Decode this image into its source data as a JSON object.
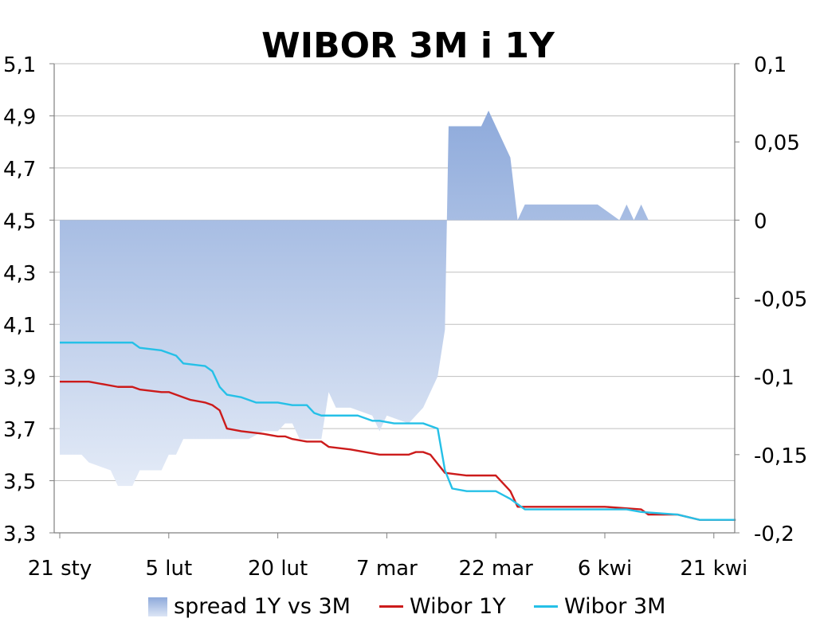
{
  "chart_data": {
    "type": "area+line",
    "title": "WIBOR 3M i 1Y",
    "x_tick_labels": [
      "21 sty",
      "5 lut",
      "20 lut",
      "7 mar",
      "22 mar",
      "6 kwi",
      "21 kwi"
    ],
    "x_tick_days": [
      0,
      15,
      30,
      45,
      60,
      75,
      90
    ],
    "y_left": {
      "min": 3.3,
      "max": 5.1,
      "ticks": [
        "3,3",
        "3,5",
        "3,7",
        "3,9",
        "4,1",
        "4,3",
        "4,5",
        "4,7",
        "4,9",
        "5,1"
      ]
    },
    "y_right": {
      "min": -0.2,
      "max": 0.1,
      "ticks": [
        "-0,2",
        "-0,15",
        "-0,1",
        "-0,05",
        "0",
        "0,05",
        "0,1"
      ]
    },
    "grid": true,
    "legend_position": "bottom",
    "series": [
      {
        "name": "spread 1Y vs 3M",
        "axis": "right",
        "kind": "area",
        "color": "#8eaadb",
        "points": [
          [
            0,
            -0.15
          ],
          [
            3,
            -0.15
          ],
          [
            4,
            -0.155
          ],
          [
            7,
            -0.16
          ],
          [
            8,
            -0.17
          ],
          [
            10,
            -0.17
          ],
          [
            11,
            -0.16
          ],
          [
            14,
            -0.16
          ],
          [
            15,
            -0.15
          ],
          [
            16,
            -0.15
          ],
          [
            17,
            -0.14
          ],
          [
            21,
            -0.14
          ],
          [
            23,
            -0.14
          ],
          [
            24,
            -0.14
          ],
          [
            25,
            -0.14
          ],
          [
            26,
            -0.14
          ],
          [
            28,
            -0.135
          ],
          [
            29,
            -0.135
          ],
          [
            30,
            -0.135
          ],
          [
            31,
            -0.13
          ],
          [
            32,
            -0.13
          ],
          [
            33,
            -0.14
          ],
          [
            36,
            -0.14
          ],
          [
            37,
            -0.11
          ],
          [
            38,
            -0.12
          ],
          [
            40,
            -0.12
          ],
          [
            43,
            -0.125
          ],
          [
            44,
            -0.135
          ],
          [
            45,
            -0.125
          ],
          [
            48,
            -0.13
          ],
          [
            50,
            -0.12
          ],
          [
            51,
            -0.11
          ],
          [
            52,
            -0.1
          ],
          [
            53,
            -0.07
          ],
          [
            53.5,
            0.06
          ],
          [
            58,
            0.06
          ],
          [
            59,
            0.07
          ],
          [
            62,
            0.04
          ],
          [
            63,
            0
          ],
          [
            64,
            0.01
          ],
          [
            68,
            0.01
          ],
          [
            74,
            0.01
          ],
          [
            77,
            0
          ],
          [
            78,
            0.01
          ],
          [
            79,
            0
          ],
          [
            80,
            0.01
          ],
          [
            81,
            0
          ]
        ]
      },
      {
        "name": "Wibor 1Y",
        "axis": "left",
        "kind": "line",
        "color": "#cc1b1b",
        "points": [
          [
            0,
            3.88
          ],
          [
            4,
            3.88
          ],
          [
            6,
            3.87
          ],
          [
            8,
            3.86
          ],
          [
            10,
            3.86
          ],
          [
            11,
            3.85
          ],
          [
            14,
            3.84
          ],
          [
            15,
            3.84
          ],
          [
            17,
            3.82
          ],
          [
            18,
            3.81
          ],
          [
            20,
            3.8
          ],
          [
            21,
            3.79
          ],
          [
            22,
            3.77
          ],
          [
            23,
            3.7
          ],
          [
            25,
            3.69
          ],
          [
            28,
            3.68
          ],
          [
            30,
            3.67
          ],
          [
            31,
            3.67
          ],
          [
            32,
            3.66
          ],
          [
            34,
            3.65
          ],
          [
            36,
            3.65
          ],
          [
            37,
            3.63
          ],
          [
            40,
            3.62
          ],
          [
            42,
            3.61
          ],
          [
            44,
            3.6
          ],
          [
            48,
            3.6
          ],
          [
            49,
            3.61
          ],
          [
            50,
            3.61
          ],
          [
            51,
            3.6
          ],
          [
            53,
            3.53
          ],
          [
            56,
            3.52
          ],
          [
            60,
            3.52
          ],
          [
            62,
            3.46
          ],
          [
            63,
            3.4
          ],
          [
            64,
            3.4
          ],
          [
            70,
            3.4
          ],
          [
            75,
            3.4
          ],
          [
            80,
            3.39
          ],
          [
            81,
            3.37
          ],
          [
            85,
            3.37
          ],
          [
            88,
            3.35
          ],
          [
            93,
            3.35
          ]
        ]
      },
      {
        "name": "Wibor 3M",
        "axis": "left",
        "kind": "line",
        "color": "#25c0e7",
        "points": [
          [
            0,
            4.03
          ],
          [
            10,
            4.03
          ],
          [
            11,
            4.01
          ],
          [
            14,
            4.0
          ],
          [
            16,
            3.98
          ],
          [
            17,
            3.95
          ],
          [
            20,
            3.94
          ],
          [
            21,
            3.92
          ],
          [
            22,
            3.86
          ],
          [
            23,
            3.83
          ],
          [
            25,
            3.82
          ],
          [
            27,
            3.8
          ],
          [
            30,
            3.8
          ],
          [
            32,
            3.79
          ],
          [
            34,
            3.79
          ],
          [
            35,
            3.76
          ],
          [
            36,
            3.75
          ],
          [
            41,
            3.75
          ],
          [
            43,
            3.73
          ],
          [
            44,
            3.73
          ],
          [
            46,
            3.72
          ],
          [
            50,
            3.72
          ],
          [
            52,
            3.7
          ],
          [
            53,
            3.54
          ],
          [
            54,
            3.47
          ],
          [
            56,
            3.46
          ],
          [
            60,
            3.46
          ],
          [
            62,
            3.43
          ],
          [
            64,
            3.39
          ],
          [
            70,
            3.39
          ],
          [
            75,
            3.39
          ],
          [
            78,
            3.39
          ],
          [
            80,
            3.38
          ],
          [
            85,
            3.37
          ],
          [
            88,
            3.35
          ],
          [
            93,
            3.35
          ]
        ]
      }
    ]
  }
}
